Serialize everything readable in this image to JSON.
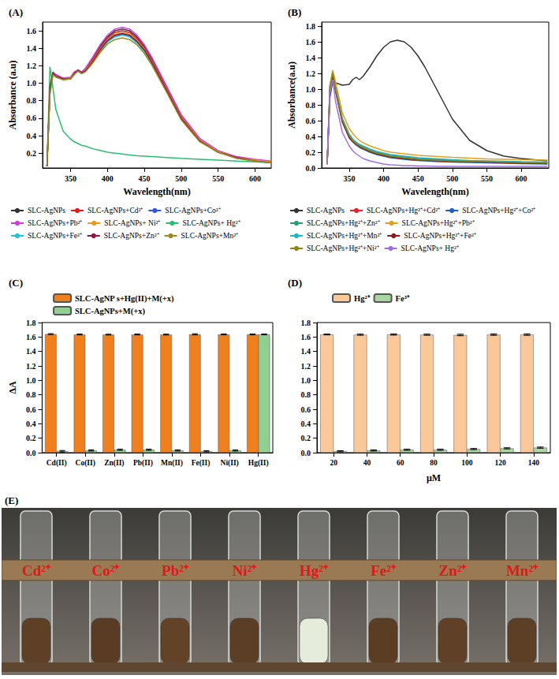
{
  "chart_data": [
    {
      "type": "line",
      "title": "(A)",
      "x_label": "Wavelength(nm)",
      "y_label": "Absorbance (a.u)",
      "xlim": [
        312,
        622
      ],
      "xticks": [
        350,
        400,
        450,
        500,
        550,
        600
      ],
      "ylim": [
        0.03,
        1.7
      ],
      "yticks": [
        0.2,
        0.4,
        0.6,
        0.8,
        {
          "value": 1,
          "label": "1.0"
        },
        1.2,
        1.4,
        1.6
      ],
      "grid": false,
      "legend": "bottom",
      "x": [
        318,
        322,
        326,
        330,
        340,
        350,
        355,
        360,
        365,
        370,
        380,
        390,
        400,
        410,
        420,
        430,
        440,
        450,
        460,
        480,
        500,
        525,
        550,
        575,
        600,
        622
      ],
      "series": [
        {
          "name": "SLC-AgNPs",
          "color": "#333333",
          "values": [
            0.05,
            0.9,
            1.1,
            1.08,
            1.05,
            1.06,
            1.12,
            1.15,
            1.12,
            1.16,
            1.28,
            1.42,
            1.53,
            1.6,
            1.62,
            1.6,
            1.53,
            1.42,
            1.28,
            0.95,
            0.62,
            0.35,
            0.22,
            0.15,
            0.12,
            0.1
          ]
        },
        {
          "name": "SLC-AgNPs+Cd²⁺",
          "color": "#e41a1c",
          "values": [
            0.05,
            0.95,
            1.12,
            1.09,
            1.05,
            1.06,
            1.12,
            1.15,
            1.12,
            1.15,
            1.27,
            1.4,
            1.51,
            1.58,
            1.6,
            1.58,
            1.51,
            1.4,
            1.26,
            0.94,
            0.61,
            0.35,
            0.22,
            0.15,
            0.12,
            0.1
          ]
        },
        {
          "name": "SLC-AgNPs+Co²⁺",
          "color": "#3355dd",
          "values": [
            0.05,
            0.92,
            1.11,
            1.08,
            1.04,
            1.05,
            1.11,
            1.15,
            1.12,
            1.14,
            1.25,
            1.38,
            1.48,
            1.54,
            1.56,
            1.54,
            1.47,
            1.37,
            1.24,
            0.92,
            0.6,
            0.34,
            0.21,
            0.15,
            0.11,
            0.09
          ]
        },
        {
          "name": "SLC-AgNPs+Pb²⁺",
          "color": "#d63ad6",
          "values": [
            0.05,
            0.9,
            1.13,
            1.1,
            1.06,
            1.07,
            1.13,
            1.15,
            1.13,
            1.17,
            1.3,
            1.44,
            1.55,
            1.62,
            1.64,
            1.62,
            1.55,
            1.44,
            1.3,
            0.97,
            0.64,
            0.37,
            0.23,
            0.16,
            0.13,
            0.11
          ]
        },
        {
          "name": "SLC-AgNPs+ Ni²⁺",
          "color": "#e69b1a",
          "values": [
            0.05,
            0.88,
            1.1,
            1.08,
            1.05,
            1.06,
            1.11,
            1.14,
            1.12,
            1.15,
            1.26,
            1.39,
            1.5,
            1.56,
            1.58,
            1.56,
            1.49,
            1.39,
            1.25,
            0.93,
            0.61,
            0.35,
            0.22,
            0.15,
            0.12,
            0.1
          ]
        },
        {
          "name": "SLC-AgNPs+ Hg²⁺",
          "color": "#2ebd6e",
          "values": [
            0.05,
            1.19,
            0.95,
            0.7,
            0.45,
            0.36,
            0.33,
            0.31,
            0.29,
            0.28,
            0.25,
            0.23,
            0.21,
            0.2,
            0.19,
            0.18,
            0.17,
            0.165,
            0.16,
            0.15,
            0.14,
            0.13,
            0.12,
            0.11,
            0.1,
            0.09
          ]
        },
        {
          "name": "SLC-AgNPs+Fe²⁺",
          "color": "#22c5d5",
          "values": [
            0.05,
            0.93,
            1.11,
            1.07,
            1.04,
            1.05,
            1.1,
            1.14,
            1.11,
            1.14,
            1.24,
            1.37,
            1.47,
            1.53,
            1.55,
            1.53,
            1.46,
            1.36,
            1.23,
            0.91,
            0.59,
            0.34,
            0.21,
            0.14,
            0.11,
            0.09
          ]
        },
        {
          "name": "SLC-AgNPs+Zn²⁺",
          "color": "#8b1a3a",
          "values": [
            0.05,
            0.96,
            1.12,
            1.08,
            1.05,
            1.05,
            1.11,
            1.15,
            1.12,
            1.14,
            1.25,
            1.38,
            1.49,
            1.55,
            1.57,
            1.55,
            1.48,
            1.38,
            1.24,
            0.92,
            0.6,
            0.34,
            0.21,
            0.15,
            0.11,
            0.09
          ]
        },
        {
          "name": "SLC-AgNPs+Mn²⁺",
          "color": "#9a8a20",
          "values": [
            0.05,
            0.87,
            1.1,
            1.07,
            1.04,
            1.05,
            1.1,
            1.14,
            1.11,
            1.13,
            1.23,
            1.35,
            1.45,
            1.5,
            1.52,
            1.5,
            1.44,
            1.34,
            1.21,
            0.9,
            0.58,
            0.33,
            0.21,
            0.14,
            0.11,
            0.09
          ]
        }
      ]
    },
    {
      "type": "line",
      "title": "(B)",
      "x_label": "Wavelength(nm)",
      "y_label": "Absorbance(a.u)",
      "xlim": [
        310,
        640
      ],
      "xticks": [
        350,
        400,
        450,
        500,
        550,
        600
      ],
      "ylim": [
        0,
        1.85
      ],
      "yticks": [
        {
          "value": 0,
          "label": "0.0"
        },
        0.2,
        0.4,
        0.6,
        0.8,
        {
          "value": 1,
          "label": "1.0"
        },
        1.2,
        1.4,
        1.6,
        1.8
      ],
      "grid": false,
      "legend": "bottom",
      "x": [
        318,
        322,
        326,
        330,
        340,
        350,
        355,
        360,
        365,
        370,
        380,
        390,
        400,
        410,
        420,
        430,
        440,
        450,
        460,
        480,
        500,
        525,
        550,
        575,
        600,
        638
      ],
      "series": [
        {
          "name": "SLC-AgNPs",
          "color": "#333333",
          "values": [
            0.05,
            0.9,
            1.1,
            1.08,
            1.05,
            1.06,
            1.12,
            1.15,
            1.12,
            1.16,
            1.28,
            1.42,
            1.53,
            1.6,
            1.62,
            1.6,
            1.53,
            1.42,
            1.28,
            0.95,
            0.62,
            0.35,
            0.22,
            0.15,
            0.12,
            0.09
          ]
        },
        {
          "name": "SLC-AgNPs+Hg²⁺+Cd²⁺",
          "color": "#e8212e",
          "values": [
            0.05,
            1.0,
            1.18,
            1.0,
            0.6,
            0.4,
            0.35,
            0.31,
            0.28,
            0.26,
            0.22,
            0.19,
            0.17,
            0.15,
            0.14,
            0.13,
            0.12,
            0.115,
            0.11,
            0.1,
            0.09,
            0.08,
            0.075,
            0.07,
            0.065,
            0.06
          ]
        },
        {
          "name": "SLC-AgNPs+Hg²⁺+Co²⁺",
          "color": "#1f5fbf",
          "values": [
            0.05,
            1.05,
            1.2,
            0.98,
            0.58,
            0.38,
            0.33,
            0.29,
            0.26,
            0.24,
            0.2,
            0.17,
            0.15,
            0.13,
            0.12,
            0.11,
            0.1,
            0.095,
            0.09,
            0.08,
            0.075,
            0.07,
            0.065,
            0.06,
            0.055,
            0.05
          ]
        },
        {
          "name": "SLC-AgNPs+Hg²⁺+Zn²⁺",
          "color": "#2e9a7a",
          "values": [
            0.05,
            0.98,
            1.16,
            1.02,
            0.62,
            0.42,
            0.36,
            0.32,
            0.29,
            0.27,
            0.23,
            0.2,
            0.18,
            0.16,
            0.15,
            0.14,
            0.13,
            0.12,
            0.115,
            0.105,
            0.095,
            0.085,
            0.08,
            0.075,
            0.07,
            0.065
          ]
        },
        {
          "name": "SLC-AgNPs+Hg²⁺+Pb²⁺",
          "color": "#e0a020",
          "values": [
            0.05,
            1.05,
            1.24,
            1.1,
            0.7,
            0.5,
            0.44,
            0.39,
            0.35,
            0.32,
            0.28,
            0.25,
            0.22,
            0.2,
            0.19,
            0.18,
            0.17,
            0.16,
            0.155,
            0.145,
            0.135,
            0.125,
            0.115,
            0.11,
            0.105,
            0.1
          ]
        },
        {
          "name": "SLC-AgNPs+Hg²⁺+Mn²⁺",
          "color": "#1fb5c9",
          "values": [
            0.05,
            1.02,
            1.19,
            1.03,
            0.63,
            0.43,
            0.37,
            0.33,
            0.3,
            0.28,
            0.24,
            0.21,
            0.19,
            0.17,
            0.16,
            0.15,
            0.14,
            0.13,
            0.125,
            0.115,
            0.105,
            0.095,
            0.09,
            0.085,
            0.08,
            0.075
          ]
        },
        {
          "name": "SLC-AgNPs+Hg²⁺+Fe²⁺",
          "color": "#8b1a1a",
          "values": [
            0.05,
            0.97,
            1.17,
            0.99,
            0.59,
            0.39,
            0.34,
            0.3,
            0.27,
            0.25,
            0.21,
            0.18,
            0.16,
            0.14,
            0.13,
            0.12,
            0.11,
            0.105,
            0.1,
            0.09,
            0.085,
            0.08,
            0.075,
            0.07,
            0.065,
            0.06
          ]
        },
        {
          "name": "SLC-AgNPs+Hg²⁺+Ni²⁺",
          "color": "#8a8a1a",
          "values": [
            0.05,
            1.01,
            1.21,
            1.01,
            0.61,
            0.41,
            0.35,
            0.31,
            0.28,
            0.26,
            0.22,
            0.19,
            0.17,
            0.15,
            0.14,
            0.13,
            0.12,
            0.11,
            0.105,
            0.095,
            0.09,
            0.085,
            0.08,
            0.075,
            0.07,
            0.065
          ]
        },
        {
          "name": "SLC-AgNPs+ Hg²⁺",
          "color": "#a070e0",
          "values": [
            0.04,
            0.95,
            1.12,
            0.85,
            0.45,
            0.28,
            0.22,
            0.18,
            0.15,
            0.12,
            0.09,
            0.07,
            0.05,
            0.04,
            0.035,
            0.03,
            0.03,
            0.025,
            0.025,
            0.02,
            0.02,
            0.02,
            0.02,
            0.02,
            0.02,
            0.02
          ]
        }
      ]
    },
    {
      "type": "bar",
      "title": "(C)",
      "y_label": "ΔA",
      "legend": "top",
      "grid": false,
      "categories": [
        "Cd(II)",
        "Co(II)",
        "Zn(II)",
        "Pb(II)",
        "Mn(II)",
        "Fe(II)",
        "Ni(II)",
        "Hg(II)"
      ],
      "ylim": [
        0,
        1.8
      ],
      "yticks": [
        {
          "value": 0,
          "label": "0.0"
        },
        0.2,
        0.4,
        0.6,
        0.8,
        {
          "value": 1,
          "label": "1.0"
        },
        1.2,
        1.4,
        1.6,
        1.8
      ],
      "series": [
        {
          "name": "SLC-AgNP s+Hg(II)+M(+x)",
          "color": "#f0801e",
          "values": [
            1.64,
            1.635,
            1.633,
            1.635,
            1.634,
            1.637,
            1.636,
            1.636
          ],
          "errors": [
            0.006,
            0.006,
            0.006,
            0.006,
            0.006,
            0.008,
            0.006,
            0.006
          ]
        },
        {
          "name": "SLC-AgNPs+M(+x)",
          "color": "#90d090",
          "values": [
            0.02,
            0.03,
            0.04,
            0.04,
            0.03,
            0.02,
            0.03,
            1.636
          ],
          "errors": [
            0.01,
            0.008,
            0.008,
            0.008,
            0.008,
            0.008,
            0.008,
            0.006
          ]
        }
      ]
    },
    {
      "type": "bar",
      "title": "(D)",
      "x_label": "μM",
      "legend": "top",
      "grid": false,
      "categories": [
        20,
        40,
        60,
        80,
        100,
        120,
        140
      ],
      "ylim": [
        0,
        1.8
      ],
      "yticks": [
        {
          "value": 0,
          "label": "0.0"
        },
        0.2,
        0.4,
        0.6,
        0.8,
        {
          "value": 1,
          "label": "1.0"
        },
        1.2,
        1.4,
        1.6,
        1.8
      ],
      "series": [
        {
          "name": "Hg²⁺",
          "color": "#fbc89a",
          "values": [
            1.635,
            1.632,
            1.634,
            1.632,
            1.628,
            1.633,
            1.633
          ],
          "errors": [
            0.006,
            0.008,
            0.008,
            0.008,
            0.01,
            0.01,
            0.01
          ]
        },
        {
          "name": "Fe³⁺",
          "color": "#a8d5a2",
          "values": [
            0.02,
            0.03,
            0.04,
            0.04,
            0.05,
            0.06,
            0.07
          ],
          "errors": [
            0.008,
            0.008,
            0.008,
            0.008,
            0.008,
            0.008,
            0.008
          ]
        }
      ]
    }
  ],
  "photo": {
    "label": "(E)",
    "tubes": [
      {
        "label": "Cd²⁺",
        "liquid": "#5e4026"
      },
      {
        "label": "Co²⁺",
        "liquid": "#5a3c24"
      },
      {
        "label": "Pb²⁺",
        "liquid": "#634328"
      },
      {
        "label": "Ni²⁺",
        "liquid": "#5c3e25"
      },
      {
        "label": "Hg²⁺",
        "liquid": "#e6ecdc"
      },
      {
        "label": "Fe²⁺",
        "liquid": "#5b3d24"
      },
      {
        "label": "Zn²⁺",
        "liquid": "#604127"
      },
      {
        "label": "Mn²⁺",
        "liquid": "#5d3f25"
      }
    ]
  }
}
